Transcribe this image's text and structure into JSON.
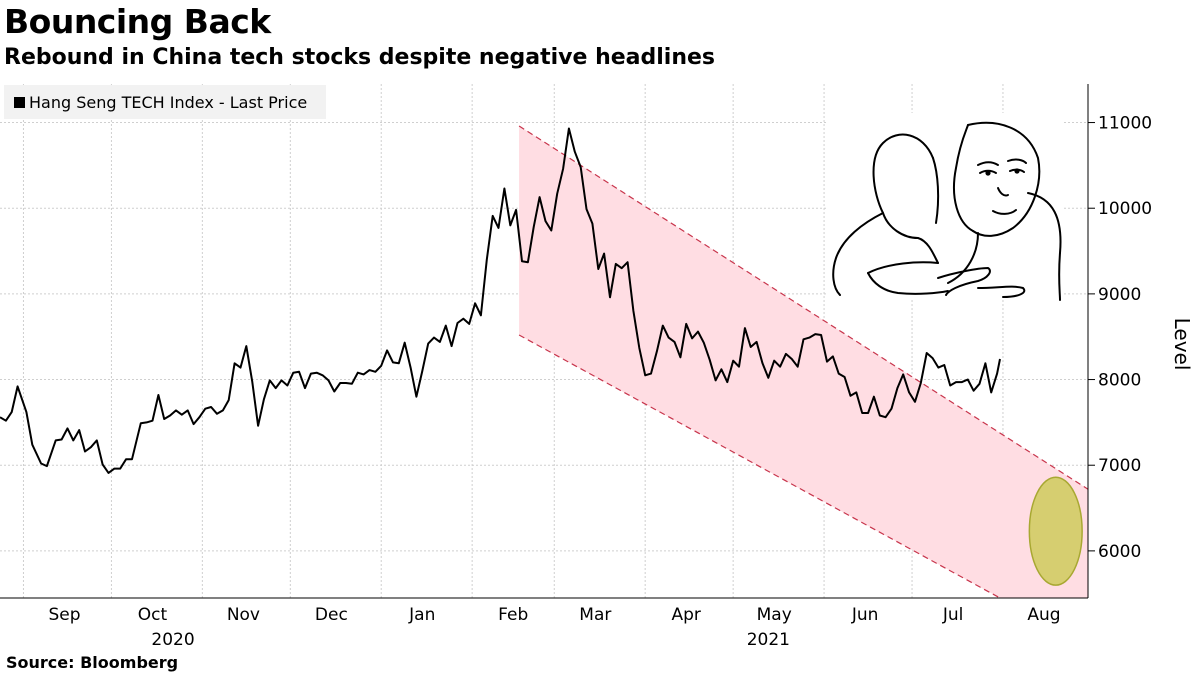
{
  "chart_data": {
    "type": "line",
    "title": "Bouncing Back",
    "subtitle": "Rebound in China tech stocks despite negative headlines",
    "source": "Source:  Bloomberg",
    "ylabel": "Level",
    "ylim": [
      5450,
      11450
    ],
    "yticks": [
      6000,
      7000,
      8000,
      9000,
      10000,
      11000
    ],
    "legend_position": "top-left",
    "grid": true,
    "line_color": "#000000",
    "xlim": [
      "2020-08-24",
      "2021-08-30"
    ],
    "month_ticks": [
      {
        "label": "Sep",
        "date": "2020-09-15"
      },
      {
        "label": "Oct",
        "date": "2020-10-15"
      },
      {
        "label": "Nov",
        "date": "2020-11-15"
      },
      {
        "label": "Dec",
        "date": "2020-12-15"
      },
      {
        "label": "Jan",
        "date": "2021-01-15"
      },
      {
        "label": "Feb",
        "date": "2021-02-15"
      },
      {
        "label": "Mar",
        "date": "2021-03-15"
      },
      {
        "label": "Apr",
        "date": "2021-04-15"
      },
      {
        "label": "May",
        "date": "2021-05-15"
      },
      {
        "label": "Jun",
        "date": "2021-06-15"
      },
      {
        "label": "Jul",
        "date": "2021-07-15"
      },
      {
        "label": "Aug",
        "date": "2021-08-15"
      }
    ],
    "gridlines_x": [
      "2020-09-01",
      "2020-10-01",
      "2020-11-01",
      "2020-12-01",
      "2021-01-01",
      "2021-02-01",
      "2021-03-01",
      "2021-04-01",
      "2021-05-01",
      "2021-06-01",
      "2021-07-01",
      "2021-08-01"
    ],
    "year_labels": [
      {
        "label": "2020",
        "date": "2020-10-22"
      },
      {
        "label": "2021",
        "date": "2021-05-13"
      }
    ],
    "channel": {
      "color": "#ffdde3",
      "dash_color": "#c8354c",
      "upper": [
        [
          "2021-02-17",
          10960
        ],
        [
          "2021-08-30",
          6720
        ]
      ],
      "lower": [
        [
          "2021-02-17",
          8520
        ],
        [
          "2021-07-31",
          5450
        ]
      ]
    },
    "highlight": {
      "center": [
        "2021-08-19",
        6230
      ],
      "rx_days": 9,
      "ry_level": 630,
      "color": "#c8c84a"
    },
    "series": [
      {
        "name": "Hang Seng TECH Index - Last Price",
        "points": [
          [
            "2020-08-24",
            7560
          ],
          [
            "2020-08-26",
            7520
          ],
          [
            "2020-08-28",
            7620
          ],
          [
            "2020-08-30",
            7920
          ],
          [
            "2020-09-02",
            7620
          ],
          [
            "2020-09-04",
            7240
          ],
          [
            "2020-09-07",
            7020
          ],
          [
            "2020-09-09",
            6990
          ],
          [
            "2020-09-12",
            7290
          ],
          [
            "2020-09-14",
            7300
          ],
          [
            "2020-09-16",
            7430
          ],
          [
            "2020-09-18",
            7290
          ],
          [
            "2020-09-20",
            7410
          ],
          [
            "2020-09-22",
            7160
          ],
          [
            "2020-09-24",
            7210
          ],
          [
            "2020-09-26",
            7290
          ],
          [
            "2020-09-28",
            7010
          ],
          [
            "2020-09-30",
            6910
          ],
          [
            "2020-10-02",
            6960
          ],
          [
            "2020-10-04",
            6960
          ],
          [
            "2020-10-06",
            7070
          ],
          [
            "2020-10-08",
            7070
          ],
          [
            "2020-10-11",
            7490
          ],
          [
            "2020-10-13",
            7500
          ],
          [
            "2020-10-15",
            7520
          ],
          [
            "2020-10-17",
            7820
          ],
          [
            "2020-10-19",
            7540
          ],
          [
            "2020-10-21",
            7580
          ],
          [
            "2020-10-23",
            7640
          ],
          [
            "2020-10-25",
            7590
          ],
          [
            "2020-10-27",
            7640
          ],
          [
            "2020-10-29",
            7480
          ],
          [
            "2020-10-31",
            7560
          ],
          [
            "2020-11-02",
            7660
          ],
          [
            "2020-11-04",
            7680
          ],
          [
            "2020-11-06",
            7600
          ],
          [
            "2020-11-08",
            7640
          ],
          [
            "2020-11-10",
            7760
          ],
          [
            "2020-11-12",
            8190
          ],
          [
            "2020-11-14",
            8140
          ],
          [
            "2020-11-16",
            8390
          ],
          [
            "2020-11-18",
            7980
          ],
          [
            "2020-11-20",
            7460
          ],
          [
            "2020-11-22",
            7770
          ],
          [
            "2020-11-24",
            7990
          ],
          [
            "2020-11-26",
            7900
          ],
          [
            "2020-11-28",
            7990
          ],
          [
            "2020-11-30",
            7930
          ],
          [
            "2020-12-02",
            8080
          ],
          [
            "2020-12-04",
            8090
          ],
          [
            "2020-12-06",
            7900
          ],
          [
            "2020-12-08",
            8070
          ],
          [
            "2020-12-10",
            8080
          ],
          [
            "2020-12-12",
            8050
          ],
          [
            "2020-12-14",
            7990
          ],
          [
            "2020-12-16",
            7860
          ],
          [
            "2020-12-18",
            7960
          ],
          [
            "2020-12-20",
            7960
          ],
          [
            "2020-12-22",
            7950
          ],
          [
            "2020-12-24",
            8080
          ],
          [
            "2020-12-26",
            8060
          ],
          [
            "2020-12-28",
            8110
          ],
          [
            "2020-12-30",
            8090
          ],
          [
            "2021-01-01",
            8160
          ],
          [
            "2021-01-03",
            8340
          ],
          [
            "2021-01-05",
            8200
          ],
          [
            "2021-01-07",
            8190
          ],
          [
            "2021-01-09",
            8430
          ],
          [
            "2021-01-11",
            8140
          ],
          [
            "2021-01-13",
            7800
          ],
          [
            "2021-01-15",
            8100
          ],
          [
            "2021-01-17",
            8420
          ],
          [
            "2021-01-19",
            8490
          ],
          [
            "2021-01-21",
            8440
          ],
          [
            "2021-01-23",
            8630
          ],
          [
            "2021-01-25",
            8390
          ],
          [
            "2021-01-27",
            8660
          ],
          [
            "2021-01-29",
            8710
          ],
          [
            "2021-01-31",
            8650
          ],
          [
            "2021-02-02",
            8890
          ],
          [
            "2021-02-04",
            8750
          ],
          [
            "2021-02-06",
            9400
          ],
          [
            "2021-02-08",
            9910
          ],
          [
            "2021-02-10",
            9770
          ],
          [
            "2021-02-12",
            10230
          ],
          [
            "2021-02-14",
            9800
          ],
          [
            "2021-02-16",
            9980
          ],
          [
            "2021-02-18",
            9380
          ],
          [
            "2021-02-20",
            9370
          ],
          [
            "2021-02-22",
            9780
          ],
          [
            "2021-02-24",
            10130
          ],
          [
            "2021-02-26",
            9850
          ],
          [
            "2021-02-28",
            9740
          ],
          [
            "2021-03-02",
            10170
          ],
          [
            "2021-03-04",
            10460
          ],
          [
            "2021-03-06",
            10930
          ],
          [
            "2021-03-08",
            10660
          ],
          [
            "2021-03-10",
            10480
          ],
          [
            "2021-03-12",
            9990
          ],
          [
            "2021-03-14",
            9820
          ],
          [
            "2021-03-16",
            9290
          ],
          [
            "2021-03-18",
            9470
          ],
          [
            "2021-03-20",
            8960
          ],
          [
            "2021-03-22",
            9350
          ],
          [
            "2021-03-24",
            9300
          ],
          [
            "2021-03-26",
            9370
          ],
          [
            "2021-03-28",
            8800
          ],
          [
            "2021-03-30",
            8370
          ],
          [
            "2021-04-01",
            8050
          ],
          [
            "2021-04-03",
            8070
          ],
          [
            "2021-04-05",
            8330
          ],
          [
            "2021-04-07",
            8630
          ],
          [
            "2021-04-09",
            8490
          ],
          [
            "2021-04-11",
            8440
          ],
          [
            "2021-04-13",
            8260
          ],
          [
            "2021-04-15",
            8650
          ],
          [
            "2021-04-17",
            8480
          ],
          [
            "2021-04-19",
            8560
          ],
          [
            "2021-04-21",
            8430
          ],
          [
            "2021-04-23",
            8230
          ],
          [
            "2021-04-25",
            7990
          ],
          [
            "2021-04-27",
            8120
          ],
          [
            "2021-04-29",
            7970
          ],
          [
            "2021-05-01",
            8220
          ],
          [
            "2021-05-03",
            8150
          ],
          [
            "2021-05-05",
            8600
          ],
          [
            "2021-05-07",
            8380
          ],
          [
            "2021-05-09",
            8440
          ],
          [
            "2021-05-11",
            8190
          ],
          [
            "2021-05-13",
            8020
          ],
          [
            "2021-05-15",
            8220
          ],
          [
            "2021-05-17",
            8150
          ],
          [
            "2021-05-19",
            8300
          ],
          [
            "2021-05-21",
            8240
          ],
          [
            "2021-05-23",
            8150
          ],
          [
            "2021-05-25",
            8470
          ],
          [
            "2021-05-27",
            8490
          ],
          [
            "2021-05-29",
            8530
          ],
          [
            "2021-05-31",
            8520
          ],
          [
            "2021-06-02",
            8210
          ],
          [
            "2021-06-04",
            8270
          ],
          [
            "2021-06-06",
            8070
          ],
          [
            "2021-06-08",
            8030
          ],
          [
            "2021-06-10",
            7810
          ],
          [
            "2021-06-12",
            7850
          ],
          [
            "2021-06-14",
            7610
          ],
          [
            "2021-06-16",
            7610
          ],
          [
            "2021-06-18",
            7800
          ],
          [
            "2021-06-20",
            7580
          ],
          [
            "2021-06-22",
            7560
          ],
          [
            "2021-06-24",
            7660
          ],
          [
            "2021-06-26",
            7900
          ],
          [
            "2021-06-28",
            8060
          ],
          [
            "2021-06-30",
            7850
          ],
          [
            "2021-07-02",
            7740
          ],
          [
            "2021-07-04",
            7960
          ],
          [
            "2021-07-06",
            8310
          ],
          [
            "2021-07-08",
            8250
          ],
          [
            "2021-07-10",
            8140
          ],
          [
            "2021-07-12",
            8170
          ],
          [
            "2021-07-14",
            7930
          ],
          [
            "2021-07-16",
            7970
          ],
          [
            "2021-07-18",
            7970
          ],
          [
            "2021-07-20",
            8000
          ],
          [
            "2021-07-22",
            7870
          ],
          [
            "2021-07-24",
            7950
          ],
          [
            "2021-07-26",
            8190
          ],
          [
            "2021-07-28",
            7850
          ],
          [
            "2021-07-30",
            8070
          ],
          [
            "2021-07-31",
            8240
          ]
        ]
      }
    ]
  },
  "legend": {
    "label": "Hang Seng TECH Index - Last Price"
  }
}
